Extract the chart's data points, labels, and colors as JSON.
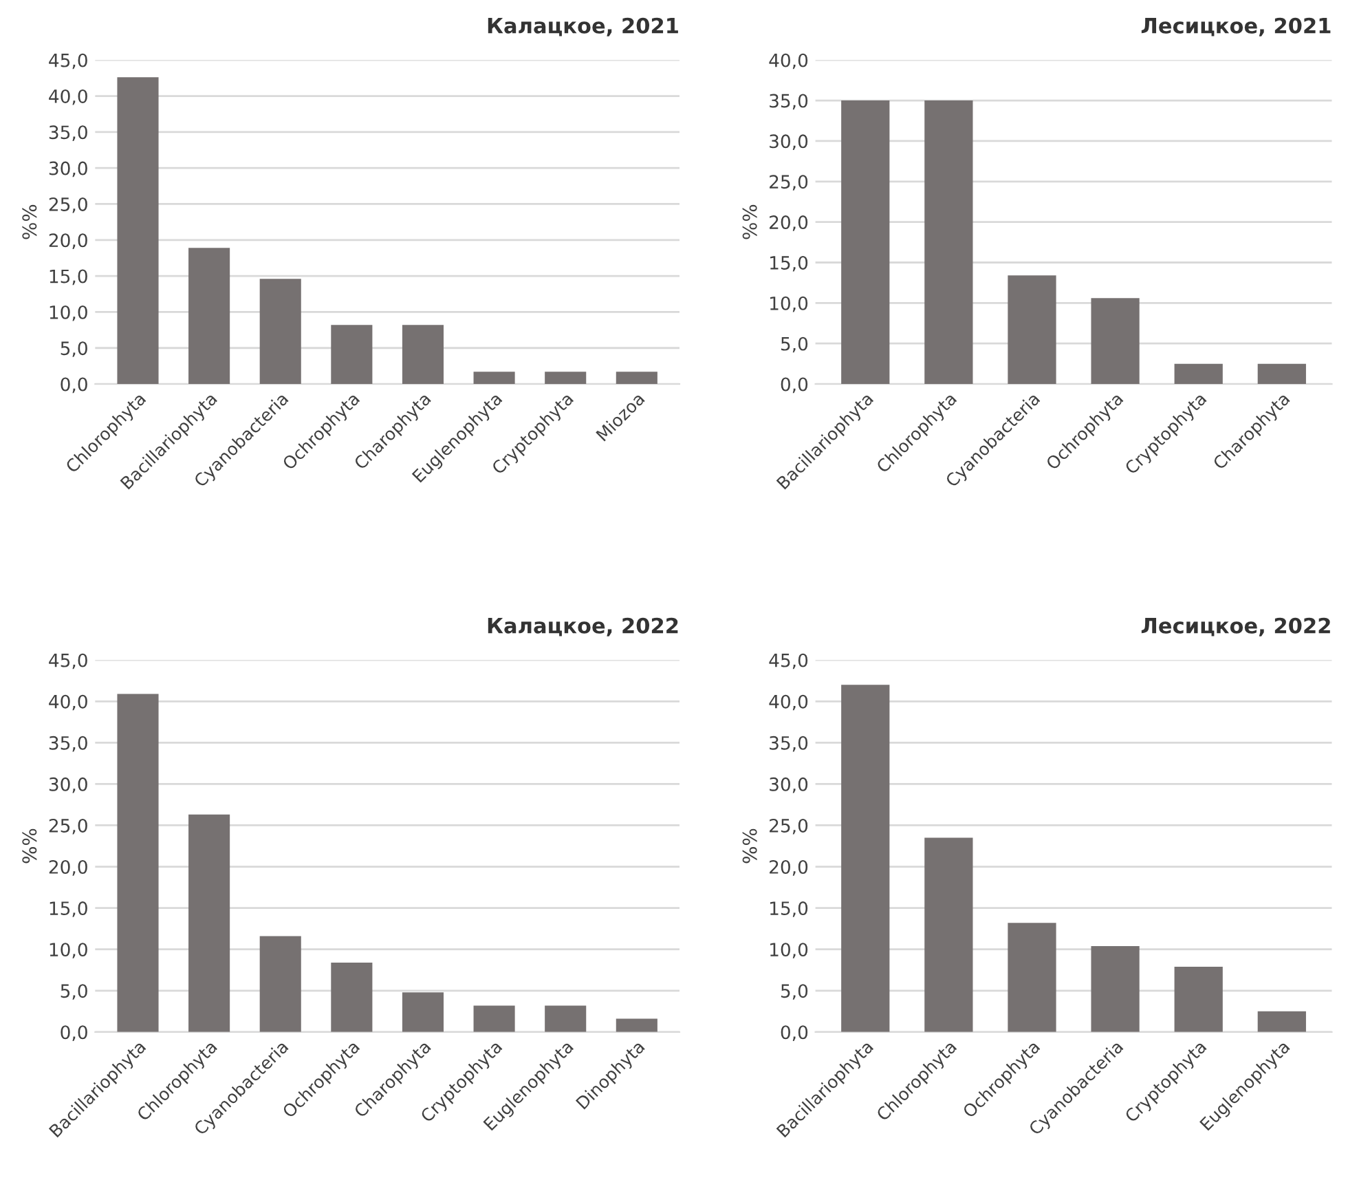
{
  "chart_data": [
    {
      "type": "bar",
      "title": "Калацкое, 2021",
      "ylabel": "%%",
      "categories": [
        "Chlorophyta",
        "Bacillariophyta",
        "Cyanobacteria",
        "Ochrophyta",
        "Charophyta",
        "Euglenophyta",
        "Cryptophyta",
        "Miozoa"
      ],
      "values": [
        42.6,
        18.9,
        14.6,
        8.2,
        8.2,
        1.7,
        1.7,
        1.7
      ],
      "color": "#767171",
      "ylim": [
        0,
        45
      ],
      "yticks": [
        {
          "value": 0,
          "label": "0,0"
        },
        {
          "value": 5,
          "label": "5,0"
        },
        {
          "value": 10,
          "label": "10,0"
        },
        {
          "value": 15,
          "label": "15,0"
        },
        {
          "value": 20,
          "label": "20,0"
        },
        {
          "value": 25,
          "label": "25,0"
        },
        {
          "value": 30,
          "label": "30,0"
        },
        {
          "value": 35,
          "label": "35,0"
        },
        {
          "value": 40,
          "label": "40,0"
        },
        {
          "value": 45,
          "label": "45,0"
        }
      ],
      "grid": "y"
    },
    {
      "type": "bar",
      "title": "Лесицкое, 2021",
      "ylabel": "%%",
      "categories": [
        "Bacillariophyta",
        "Chlorophyta",
        "Cyanobacteria",
        "Ochrophyta",
        "Cryptophyta",
        "Charophyta"
      ],
      "values": [
        35.0,
        35.0,
        13.4,
        10.6,
        2.5,
        2.5
      ],
      "color": "#767171",
      "ylim": [
        0,
        40
      ],
      "yticks": [
        {
          "value": 0,
          "label": "0,0"
        },
        {
          "value": 5,
          "label": "5,0"
        },
        {
          "value": 10,
          "label": "10,0"
        },
        {
          "value": 15,
          "label": "15,0"
        },
        {
          "value": 20,
          "label": "20,0"
        },
        {
          "value": 25,
          "label": "25,0"
        },
        {
          "value": 30,
          "label": "30,0"
        },
        {
          "value": 35,
          "label": "35,0"
        },
        {
          "value": 40,
          "label": "40,0"
        }
      ],
      "grid": "y"
    },
    {
      "type": "bar",
      "title": "Калацкое, 2022",
      "ylabel": "%%",
      "categories": [
        "Bacillariophyta",
        "Chlorophyta",
        "Cyanobacteria",
        "Ochrophyta",
        "Charophyta",
        "Cryptophyta",
        "Euglenophyta",
        "Dinophyta"
      ],
      "values": [
        40.9,
        26.3,
        11.6,
        8.4,
        4.8,
        3.2,
        3.2,
        1.6
      ],
      "color": "#767171",
      "ylim": [
        0,
        45
      ],
      "yticks": [
        {
          "value": 0,
          "label": "0,0"
        },
        {
          "value": 5,
          "label": "5,0"
        },
        {
          "value": 10,
          "label": "10,0"
        },
        {
          "value": 15,
          "label": "15,0"
        },
        {
          "value": 20,
          "label": "20,0"
        },
        {
          "value": 25,
          "label": "25,0"
        },
        {
          "value": 30,
          "label": "30,0"
        },
        {
          "value": 35,
          "label": "35,0"
        },
        {
          "value": 40,
          "label": "40,0"
        },
        {
          "value": 45,
          "label": "45,0"
        }
      ],
      "grid": "y"
    },
    {
      "type": "bar",
      "title": "Лесицкое, 2022",
      "ylabel": "%%",
      "categories": [
        "Bacillariophyta",
        "Chlorophyta",
        "Ochrophyta",
        "Cyanobacteria",
        "Cryptophyta",
        "Euglenophyta"
      ],
      "values": [
        42.0,
        23.5,
        13.2,
        10.4,
        7.9,
        2.5
      ],
      "color": "#767171",
      "ylim": [
        0,
        45
      ],
      "yticks": [
        {
          "value": 0,
          "label": "0,0"
        },
        {
          "value": 5,
          "label": "5,0"
        },
        {
          "value": 10,
          "label": "10,0"
        },
        {
          "value": 15,
          "label": "15,0"
        },
        {
          "value": 20,
          "label": "20,0"
        },
        {
          "value": 25,
          "label": "25,0"
        },
        {
          "value": 30,
          "label": "30,0"
        },
        {
          "value": 35,
          "label": "35,0"
        },
        {
          "value": 40,
          "label": "40,0"
        },
        {
          "value": 45,
          "label": "45,0"
        }
      ],
      "grid": "y"
    }
  ]
}
